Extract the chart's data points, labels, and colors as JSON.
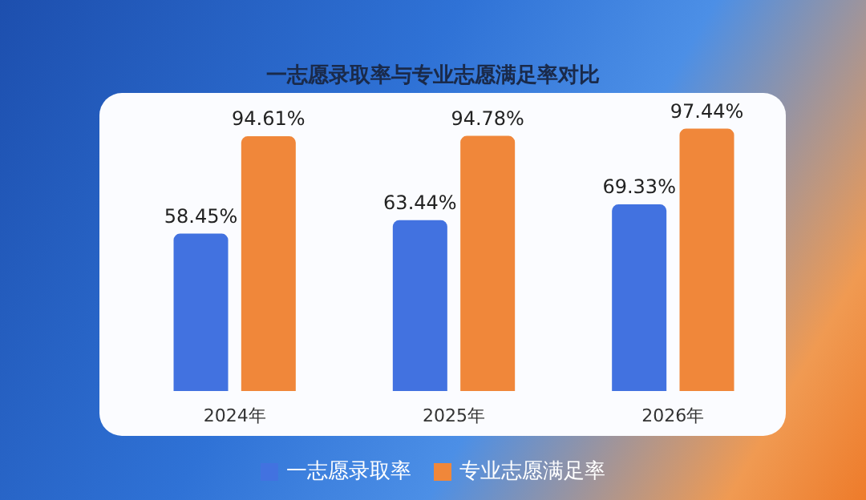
{
  "chart_data": {
    "type": "bar",
    "title": "一志愿录取率与专业志愿满足率对比",
    "categories": [
      "2024年",
      "2025年",
      "2026年"
    ],
    "series": [
      {
        "name": "一志愿录取率",
        "color": "#4272e0",
        "values": [
          58.45,
          63.44,
          69.33
        ],
        "value_labels": [
          "58.45%",
          "63.44%",
          "69.33%"
        ]
      },
      {
        "name": "专业志愿满足率",
        "color": "#f0873a",
        "values": [
          94.61,
          94.78,
          97.44
        ],
        "value_labels": [
          "94.61%",
          "94.78%",
          "97.44%"
        ]
      }
    ],
    "legend": "bottom",
    "tick_labels": "x"
  }
}
